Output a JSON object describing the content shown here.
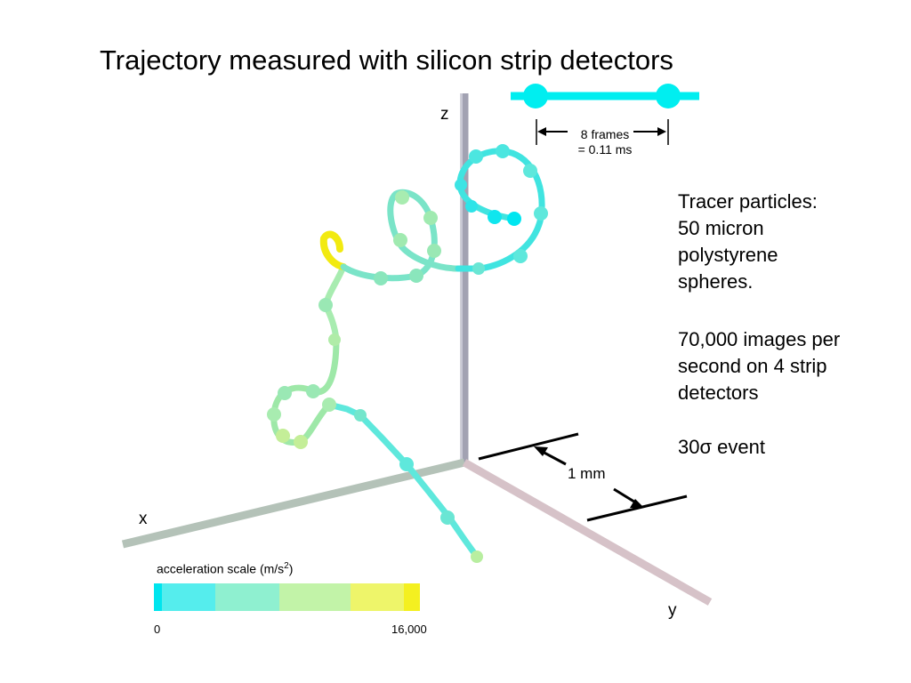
{
  "title": "Trajectory measured with silicon strip detectors",
  "notes": {
    "tracer_line1": "Tracer particles:",
    "tracer_line2": "50 micron",
    "tracer_line3": "polystyrene",
    "tracer_line4": "spheres.",
    "images_line1": "70,000 images per",
    "images_line2": "second on 4 strip",
    "images_line3": "detectors",
    "event_prefix": "30",
    "event_symbol": "σ",
    "event_suffix": " event"
  },
  "axes": {
    "x": "x",
    "y": "y",
    "z": "z"
  },
  "frame_scale": {
    "line1": "8 frames",
    "line2": "= 0.11 ms"
  },
  "distance_scale": {
    "label": "1 mm"
  },
  "acceleration_scale": {
    "label": "acceleration scale  (m/s",
    "unit_superscript": "2",
    "label_close": ")",
    "min_label": "0",
    "max_label": "16,000",
    "colors": [
      "#00e5ee",
      "#55eded",
      "#8ff0d0",
      "#c2f3a8",
      "#eef56a",
      "#f4f020"
    ]
  }
}
